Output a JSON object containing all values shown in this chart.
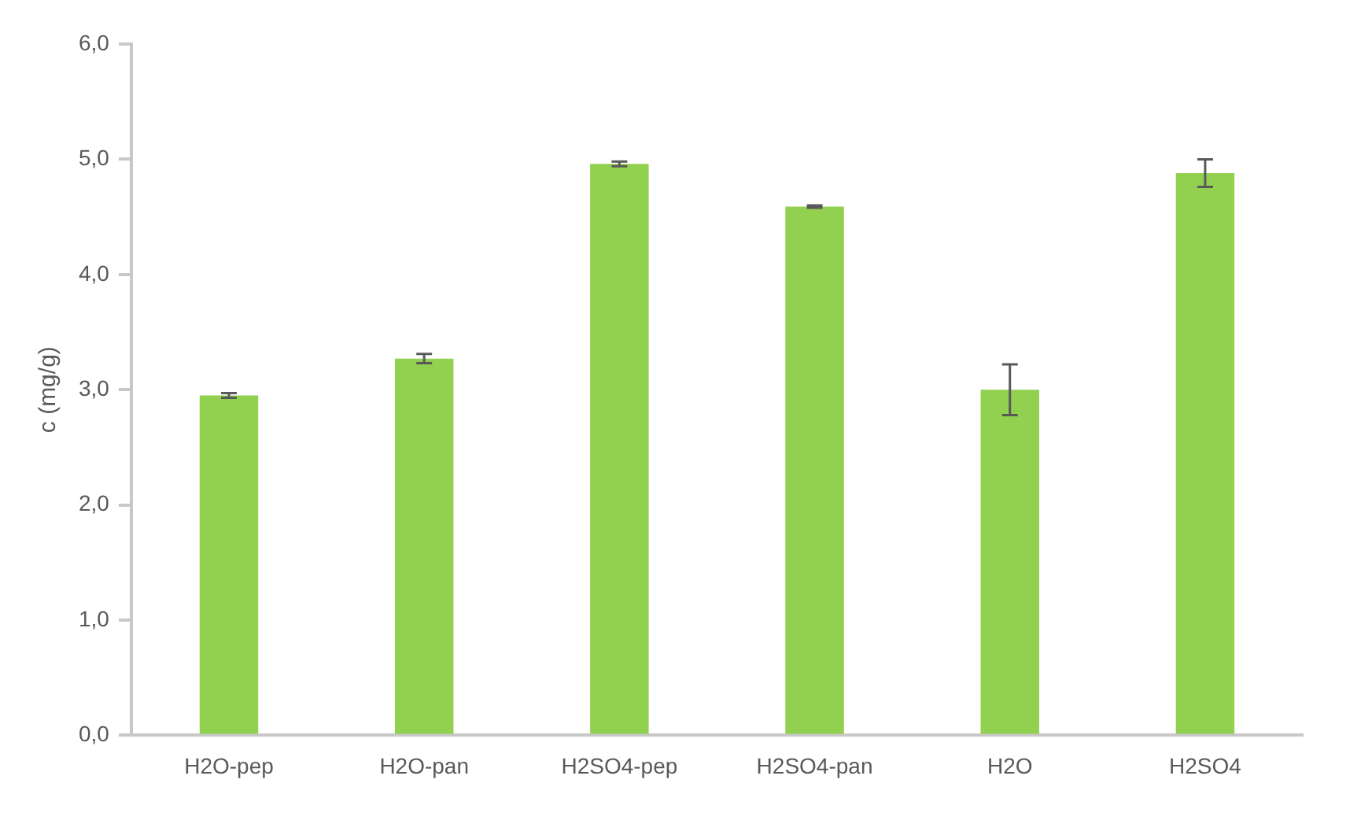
{
  "chart_data": {
    "type": "bar",
    "ylabel": "c (mg/g)",
    "categories": [
      "H2O-pep",
      "H2O-pan",
      "H2SO4-pep",
      "H2SO4-pan",
      "H2O",
      "H2SO4"
    ],
    "values": [
      2.95,
      3.27,
      4.96,
      4.59,
      3.0,
      4.88
    ],
    "errors": [
      0.02,
      0.04,
      0.02,
      0.01,
      0.22,
      0.12
    ],
    "color": "#92d050",
    "ylim": [
      0,
      6
    ],
    "yticks": [
      {
        "value": 0,
        "label": "0,0"
      },
      {
        "value": 1,
        "label": "1,0"
      },
      {
        "value": 2,
        "label": "2,0"
      },
      {
        "value": 3,
        "label": "3,0"
      },
      {
        "value": 4,
        "label": "4,0"
      },
      {
        "value": 5,
        "label": "5,0"
      },
      {
        "value": 6,
        "label": "6,0"
      }
    ],
    "grid": false
  }
}
